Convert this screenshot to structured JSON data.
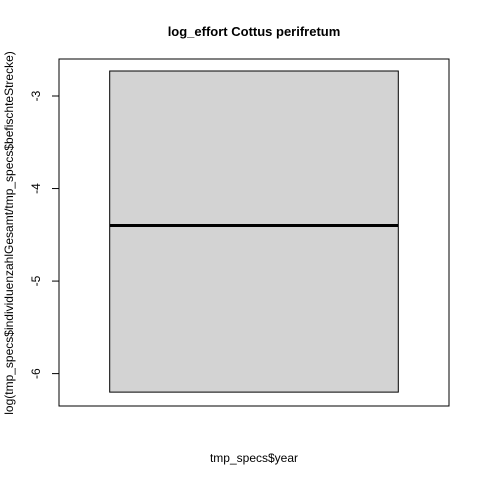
{
  "chart_data": {
    "type": "box",
    "title": "log_effort Cottus perifretum",
    "xlabel": "tmp_specs$year",
    "ylabel": "log(tmp_specs$individuenzahlGesamt/tmp_specs$befischteStrecke)",
    "ylim": [
      -6.35,
      -2.6
    ],
    "yticks": [
      -3,
      -4,
      -5,
      -6
    ],
    "ytick_labels": [
      "-3",
      "-4",
      "-5",
      "-6"
    ],
    "grid": false,
    "legend": "none",
    "boxes": [
      {
        "q1": -6.2,
        "median": -4.4,
        "q3": -2.4,
        "whisker_low": -6.2,
        "whisker_high": -2.4
      }
    ],
    "colors": {
      "box_fill": "#d3d3d3",
      "box_stroke": "#000000",
      "median": "#000000",
      "axis": "#000000",
      "text": "#000000"
    }
  }
}
